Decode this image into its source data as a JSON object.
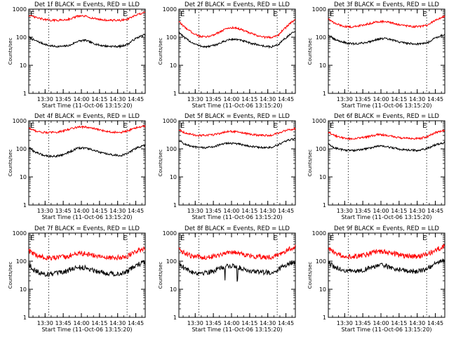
{
  "figure": {
    "rows": 3,
    "cols": 3
  },
  "chart_data": [
    {
      "type": "line",
      "title": "Det 1f BLACK = Events, RED = LLD",
      "xlabel": "Start Time (11-Oct-06 13:15:20)",
      "ylabel": "Counts/sec",
      "yscale": "log",
      "ylim": [
        1,
        1000
      ],
      "yticks": [
        "1",
        "10",
        "100",
        "1000"
      ],
      "xlim": [
        13.275,
        14.88
      ],
      "xticks": [
        "13:30",
        "13:45",
        "14:00",
        "14:15",
        "14:30",
        "14:45"
      ],
      "vlines": [
        13.55,
        14.63
      ],
      "markers": [
        "E",
        "E"
      ],
      "x": [
        13.275,
        13.35,
        13.45,
        13.55,
        13.65,
        13.75,
        13.85,
        13.95,
        14.05,
        14.15,
        14.25,
        14.35,
        14.45,
        14.55,
        14.65,
        14.75,
        14.88
      ],
      "series": [
        {
          "name": "BLACK = Events",
          "color": "#000000",
          "values": [
            100,
            78,
            62,
            50,
            47,
            47,
            52,
            72,
            78,
            62,
            52,
            48,
            47,
            47,
            58,
            90,
            125
          ]
        },
        {
          "name": "RED = LLD",
          "color": "#ff0000",
          "values": [
            600,
            520,
            450,
            400,
            400,
            410,
            450,
            560,
            560,
            480,
            430,
            400,
            400,
            400,
            450,
            600,
            750
          ]
        }
      ]
    },
    {
      "type": "line",
      "title": "Det 2f BLACK = Events, RED = LLD",
      "xlabel": "Start Time (11-Oct-06 13:15:20)",
      "ylabel": "Counts/sec",
      "yscale": "log",
      "ylim": [
        1,
        1000
      ],
      "yticks": [
        "1",
        "10",
        "100",
        "1000"
      ],
      "xlim": [
        13.275,
        14.88
      ],
      "xticks": [
        "13:30",
        "13:45",
        "14:00",
        "14:15",
        "14:30",
        "14:45"
      ],
      "vlines": [
        13.55,
        14.63
      ],
      "markers": [
        "E",
        "E"
      ],
      "x": [
        13.275,
        13.35,
        13.45,
        13.55,
        13.65,
        13.75,
        13.85,
        13.95,
        14.05,
        14.15,
        14.25,
        14.35,
        14.45,
        14.55,
        14.65,
        14.75,
        14.88
      ],
      "series": [
        {
          "name": "BLACK = Events",
          "color": "#000000",
          "values": [
            150,
            95,
            65,
            50,
            45,
            50,
            62,
            80,
            85,
            75,
            62,
            55,
            48,
            45,
            55,
            95,
            160
          ]
        },
        {
          "name": "RED = LLD",
          "color": "#ff0000",
          "values": [
            350,
            230,
            150,
            110,
            100,
            120,
            160,
            210,
            220,
            180,
            140,
            115,
            100,
            100,
            120,
            220,
            420
          ]
        }
      ]
    },
    {
      "type": "line",
      "title": "Det 3f BLACK = Events, RED = LLD",
      "xlabel": "Start Time (11-Oct-06 13:15:20)",
      "ylabel": "Counts/sec",
      "yscale": "log",
      "ylim": [
        1,
        1000
      ],
      "yticks": [
        "1",
        "10",
        "100",
        "1000"
      ],
      "xlim": [
        13.275,
        14.88
      ],
      "xticks": [
        "13:30",
        "13:45",
        "14:00",
        "14:15",
        "14:30",
        "14:45"
      ],
      "vlines": [
        13.55,
        14.63
      ],
      "markers": [
        "E",
        "E"
      ],
      "x": [
        13.275,
        13.35,
        13.45,
        13.55,
        13.65,
        13.75,
        13.85,
        13.95,
        14.05,
        14.15,
        14.25,
        14.35,
        14.45,
        14.55,
        14.65,
        14.75,
        14.88
      ],
      "series": [
        {
          "name": "BLACK = Events",
          "color": "#000000",
          "values": [
            120,
            85,
            70,
            60,
            58,
            62,
            70,
            85,
            90,
            80,
            68,
            62,
            58,
            58,
            65,
            95,
            125
          ]
        },
        {
          "name": "RED = LLD",
          "color": "#ff0000",
          "values": [
            450,
            320,
            260,
            230,
            240,
            270,
            310,
            360,
            360,
            320,
            280,
            250,
            240,
            240,
            270,
            400,
            550
          ]
        }
      ]
    },
    {
      "type": "line",
      "title": "Det 4f BLACK = Events, RED = LLD",
      "xlabel": "Start Time (11-Oct-06 13:15:20)",
      "ylabel": "Counts/sec",
      "yscale": "log",
      "ylim": [
        1,
        1000
      ],
      "yticks": [
        "1",
        "10",
        "100",
        "1000"
      ],
      "xlim": [
        13.275,
        14.88
      ],
      "xticks": [
        "13:30",
        "13:45",
        "14:00",
        "14:15",
        "14:30",
        "14:45"
      ],
      "vlines": [
        13.55,
        14.63
      ],
      "markers": [
        "E",
        "E"
      ],
      "x": [
        13.275,
        13.35,
        13.45,
        13.55,
        13.65,
        13.75,
        13.85,
        13.95,
        14.05,
        14.15,
        14.25,
        14.35,
        14.45,
        14.55,
        14.65,
        14.75,
        14.88
      ],
      "series": [
        {
          "name": "BLACK = Events",
          "color": "#000000",
          "values": [
            110,
            80,
            62,
            55,
            55,
            62,
            80,
            105,
            108,
            92,
            75,
            65,
            60,
            58,
            70,
            105,
            135
          ]
        },
        {
          "name": "RED = LLD",
          "color": "#ff0000",
          "values": [
            550,
            450,
            390,
            380,
            390,
            430,
            520,
            600,
            600,
            540,
            470,
            420,
            390,
            390,
            440,
            560,
            650
          ]
        }
      ]
    },
    {
      "type": "line",
      "title": "Det 5f BLACK = Events, RED = LLD",
      "xlabel": "Start Time (11-Oct-06 13:15:20)",
      "ylabel": "Counts/sec",
      "yscale": "log",
      "ylim": [
        1,
        1000
      ],
      "yticks": [
        "1",
        "10",
        "100",
        "1000"
      ],
      "xlim": [
        13.275,
        14.88
      ],
      "xticks": [
        "13:30",
        "13:45",
        "14:00",
        "14:15",
        "14:30",
        "14:45"
      ],
      "vlines": [
        13.55,
        14.63
      ],
      "markers": [
        "E",
        "E"
      ],
      "x": [
        13.275,
        13.35,
        13.45,
        13.55,
        13.65,
        13.75,
        13.85,
        13.95,
        14.05,
        14.15,
        14.25,
        14.35,
        14.45,
        14.55,
        14.65,
        14.75,
        14.88
      ],
      "series": [
        {
          "name": "BLACK = Events",
          "color": "#000000",
          "values": [
            200,
            150,
            120,
            110,
            110,
            120,
            140,
            160,
            155,
            140,
            125,
            115,
            110,
            112,
            140,
            190,
            230
          ]
        },
        {
          "name": "RED = LLD",
          "color": "#ff0000",
          "values": [
            480,
            380,
            320,
            300,
            300,
            320,
            360,
            420,
            410,
            370,
            330,
            310,
            300,
            305,
            360,
            460,
            520
          ]
        }
      ]
    },
    {
      "type": "line",
      "title": "Det 6f BLACK = Events, RED = LLD",
      "xlabel": "Start Time (11-Oct-06 13:15:20)",
      "ylabel": "Counts/sec",
      "yscale": "log",
      "ylim": [
        1,
        1000
      ],
      "yticks": [
        "1",
        "10",
        "100",
        "1000"
      ],
      "xlim": [
        13.275,
        14.88
      ],
      "xticks": [
        "13:30",
        "13:45",
        "14:00",
        "14:15",
        "14:30",
        "14:45"
      ],
      "vlines": [
        13.55,
        14.63
      ],
      "markers": [
        "E",
        "E"
      ],
      "x": [
        13.275,
        13.35,
        13.45,
        13.55,
        13.65,
        13.75,
        13.85,
        13.95,
        14.05,
        14.15,
        14.25,
        14.35,
        14.45,
        14.55,
        14.65,
        14.75,
        14.88
      ],
      "series": [
        {
          "name": "BLACK = Events",
          "color": "#000000",
          "values": [
            145,
            110,
            95,
            88,
            88,
            95,
            108,
            125,
            122,
            110,
            98,
            92,
            88,
            90,
            105,
            140,
            165
          ]
        },
        {
          "name": "RED = LLD",
          "color": "#ff0000",
          "values": [
            400,
            300,
            250,
            230,
            230,
            250,
            280,
            320,
            310,
            280,
            250,
            235,
            230,
            235,
            280,
            380,
            450
          ]
        }
      ]
    },
    {
      "type": "line",
      "title": "Det 7f BLACK = Events, RED = LLD",
      "xlabel": "Start Time (11-Oct-06 13:15:20)",
      "ylabel": "Counts/sec",
      "yscale": "log",
      "ylim": [
        1,
        1000
      ],
      "yticks": [
        "1",
        "10",
        "100",
        "1000"
      ],
      "xlim": [
        13.275,
        14.88
      ],
      "xticks": [
        "13:30",
        "13:45",
        "14:00",
        "14:15",
        "14:30",
        "14:45"
      ],
      "vlines": [
        13.55,
        14.63
      ],
      "markers": [
        "E",
        "E"
      ],
      "x": [
        13.275,
        13.35,
        13.45,
        13.55,
        13.65,
        13.75,
        13.85,
        13.95,
        14.05,
        14.15,
        14.25,
        14.35,
        14.45,
        14.55,
        14.65,
        14.75,
        14.88
      ],
      "series": [
        {
          "name": "BLACK = Events",
          "color": "#000000",
          "values": [
            75,
            48,
            36,
            34,
            36,
            40,
            50,
            60,
            58,
            50,
            42,
            38,
            35,
            36,
            45,
            70,
            95
          ]
        },
        {
          "name": "RED = LLD",
          "color": "#ff0000",
          "values": [
            240,
            170,
            140,
            130,
            130,
            140,
            160,
            190,
            185,
            165,
            145,
            135,
            130,
            135,
            155,
            220,
            280
          ]
        }
      ]
    },
    {
      "type": "line",
      "title": "Det 8f BLACK = Events, RED = LLD",
      "xlabel": "Start Time (11-Oct-06 13:15:20)",
      "ylabel": "Counts/sec",
      "yscale": "log",
      "ylim": [
        1,
        1000
      ],
      "yticks": [
        "1",
        "10",
        "100",
        "1000"
      ],
      "xlim": [
        13.275,
        14.88
      ],
      "xticks": [
        "13:30",
        "13:45",
        "14:00",
        "14:15",
        "14:30",
        "14:45"
      ],
      "vlines": [
        13.55,
        14.63
      ],
      "markers": [
        "E",
        "E"
      ],
      "x": [
        13.275,
        13.35,
        13.45,
        13.55,
        13.65,
        13.75,
        13.85,
        13.95,
        14.05,
        14.15,
        14.25,
        14.35,
        14.45,
        14.55,
        14.65,
        14.75,
        14.88
      ],
      "series": [
        {
          "name": "BLACK = Events",
          "color": "#000000",
          "values": [
            85,
            55,
            42,
            38,
            40,
            45,
            55,
            68,
            65,
            55,
            46,
            42,
            40,
            40,
            50,
            75,
            100
          ]
        },
        {
          "name": "RED = LLD",
          "color": "#ff0000",
          "values": [
            280,
            190,
            150,
            140,
            140,
            150,
            175,
            210,
            205,
            180,
            155,
            145,
            140,
            140,
            165,
            240,
            320
          ]
        }
      ]
    },
    {
      "type": "line",
      "title": "Det 9f BLACK = Events, RED = LLD",
      "xlabel": "Start Time (11-Oct-06 13:15:20)",
      "ylabel": "Counts/sec",
      "yscale": "log",
      "ylim": [
        1,
        1000
      ],
      "yticks": [
        "1",
        "10",
        "100",
        "1000"
      ],
      "xlim": [
        13.275,
        14.88
      ],
      "xticks": [
        "13:30",
        "13:45",
        "14:00",
        "14:15",
        "14:30",
        "14:45"
      ],
      "vlines": [
        13.55,
        14.63
      ],
      "markers": [
        "E",
        "E"
      ],
      "x": [
        13.275,
        13.35,
        13.45,
        13.55,
        13.65,
        13.75,
        13.85,
        13.95,
        14.05,
        14.15,
        14.25,
        14.35,
        14.45,
        14.55,
        14.65,
        14.75,
        14.88
      ],
      "series": [
        {
          "name": "BLACK = Events",
          "color": "#000000",
          "values": [
            90,
            62,
            50,
            44,
            44,
            48,
            58,
            70,
            68,
            58,
            50,
            46,
            44,
            45,
            55,
            82,
            105
          ]
        },
        {
          "name": "RED = LLD",
          "color": "#ff0000",
          "values": [
            280,
            200,
            165,
            150,
            150,
            160,
            185,
            220,
            215,
            190,
            165,
            155,
            150,
            150,
            175,
            250,
            330
          ]
        }
      ]
    }
  ]
}
